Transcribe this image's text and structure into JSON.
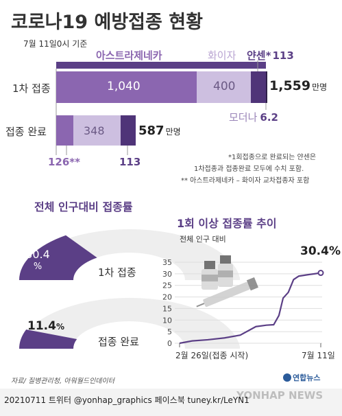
{
  "title": "코로나19 예방접종 현황",
  "date_note": "7월 11일0시 기준",
  "vaccine_chart": {
    "unit": "만명",
    "legend": {
      "az": "아스트라제네카",
      "pfizer": "화이자",
      "janssen": "얀센*",
      "moderna": "모더나"
    },
    "rows": [
      {
        "label": "1차 접종",
        "az": 1040,
        "pfizer": 400,
        "janssen": 113,
        "moderna": 6.2,
        "total": 1559
      },
      {
        "label": "접종 완료",
        "az": 126,
        "pfizer": 348,
        "janssen": 113,
        "total": 587
      }
    ],
    "row1": {
      "az_label": "1,040",
      "pfizer_label": "400",
      "janssen_label": "113",
      "total_label": "1,559",
      "moderna_label": "6.2"
    },
    "row2": {
      "az_label": "126**",
      "pfizer_label": "348",
      "janssen_label": "113",
      "total_label": "587"
    },
    "notes": [
      "*1회접종으로 완료되는 얀센은",
      "1차접종과 접종완료 모두에 수치 포함.",
      "** 아스트라제네카 – 화이자 교차접종자 포함"
    ]
  },
  "gauge_section": {
    "title": "전체 인구대비 접종률",
    "gauges": [
      {
        "label": "1차 접종",
        "value": 30.4,
        "value_label": "30.4",
        "unit": "%"
      },
      {
        "label": "접종 완료",
        "value": 11.4,
        "value_label": "11.4",
        "unit": "%"
      }
    ]
  },
  "chart_data": {
    "type": "line",
    "title": "1회 이상 접종률 추이",
    "ylabel": "전체 인구 대비",
    "ylim": [
      0,
      35
    ],
    "yticks": [
      0,
      5,
      10,
      15,
      20,
      25,
      30,
      35
    ],
    "x_start_label": "2월 26일(접종 시작)",
    "x_end_label": "7월 11일",
    "end_value_label": "30.4%",
    "series": [
      {
        "x": [
          "2021-02-26",
          "2021-03-10",
          "2021-03-25",
          "2021-04-10",
          "2021-04-25",
          "2021-05-10",
          "2021-05-20",
          "2021-05-27",
          "2021-06-01",
          "2021-06-05",
          "2021-06-10",
          "2021-06-15",
          "2021-06-20",
          "2021-06-30",
          "2021-07-05",
          "2021-07-11"
        ],
        "y": [
          0,
          1.0,
          1.5,
          2.3,
          3.5,
          7.2,
          7.8,
          8.0,
          12.0,
          19.5,
          22.0,
          27.5,
          29.0,
          29.7,
          30.0,
          30.4
        ]
      }
    ]
  },
  "source": "자료/ 질병관리청, 아워월드인데이터",
  "footer": "20210711 트위터 @yonhap_graphics  페이스북 tuney.kr/LeYN1",
  "logo_text": "연합뉴스",
  "watermark": "YONHAP NEWS"
}
